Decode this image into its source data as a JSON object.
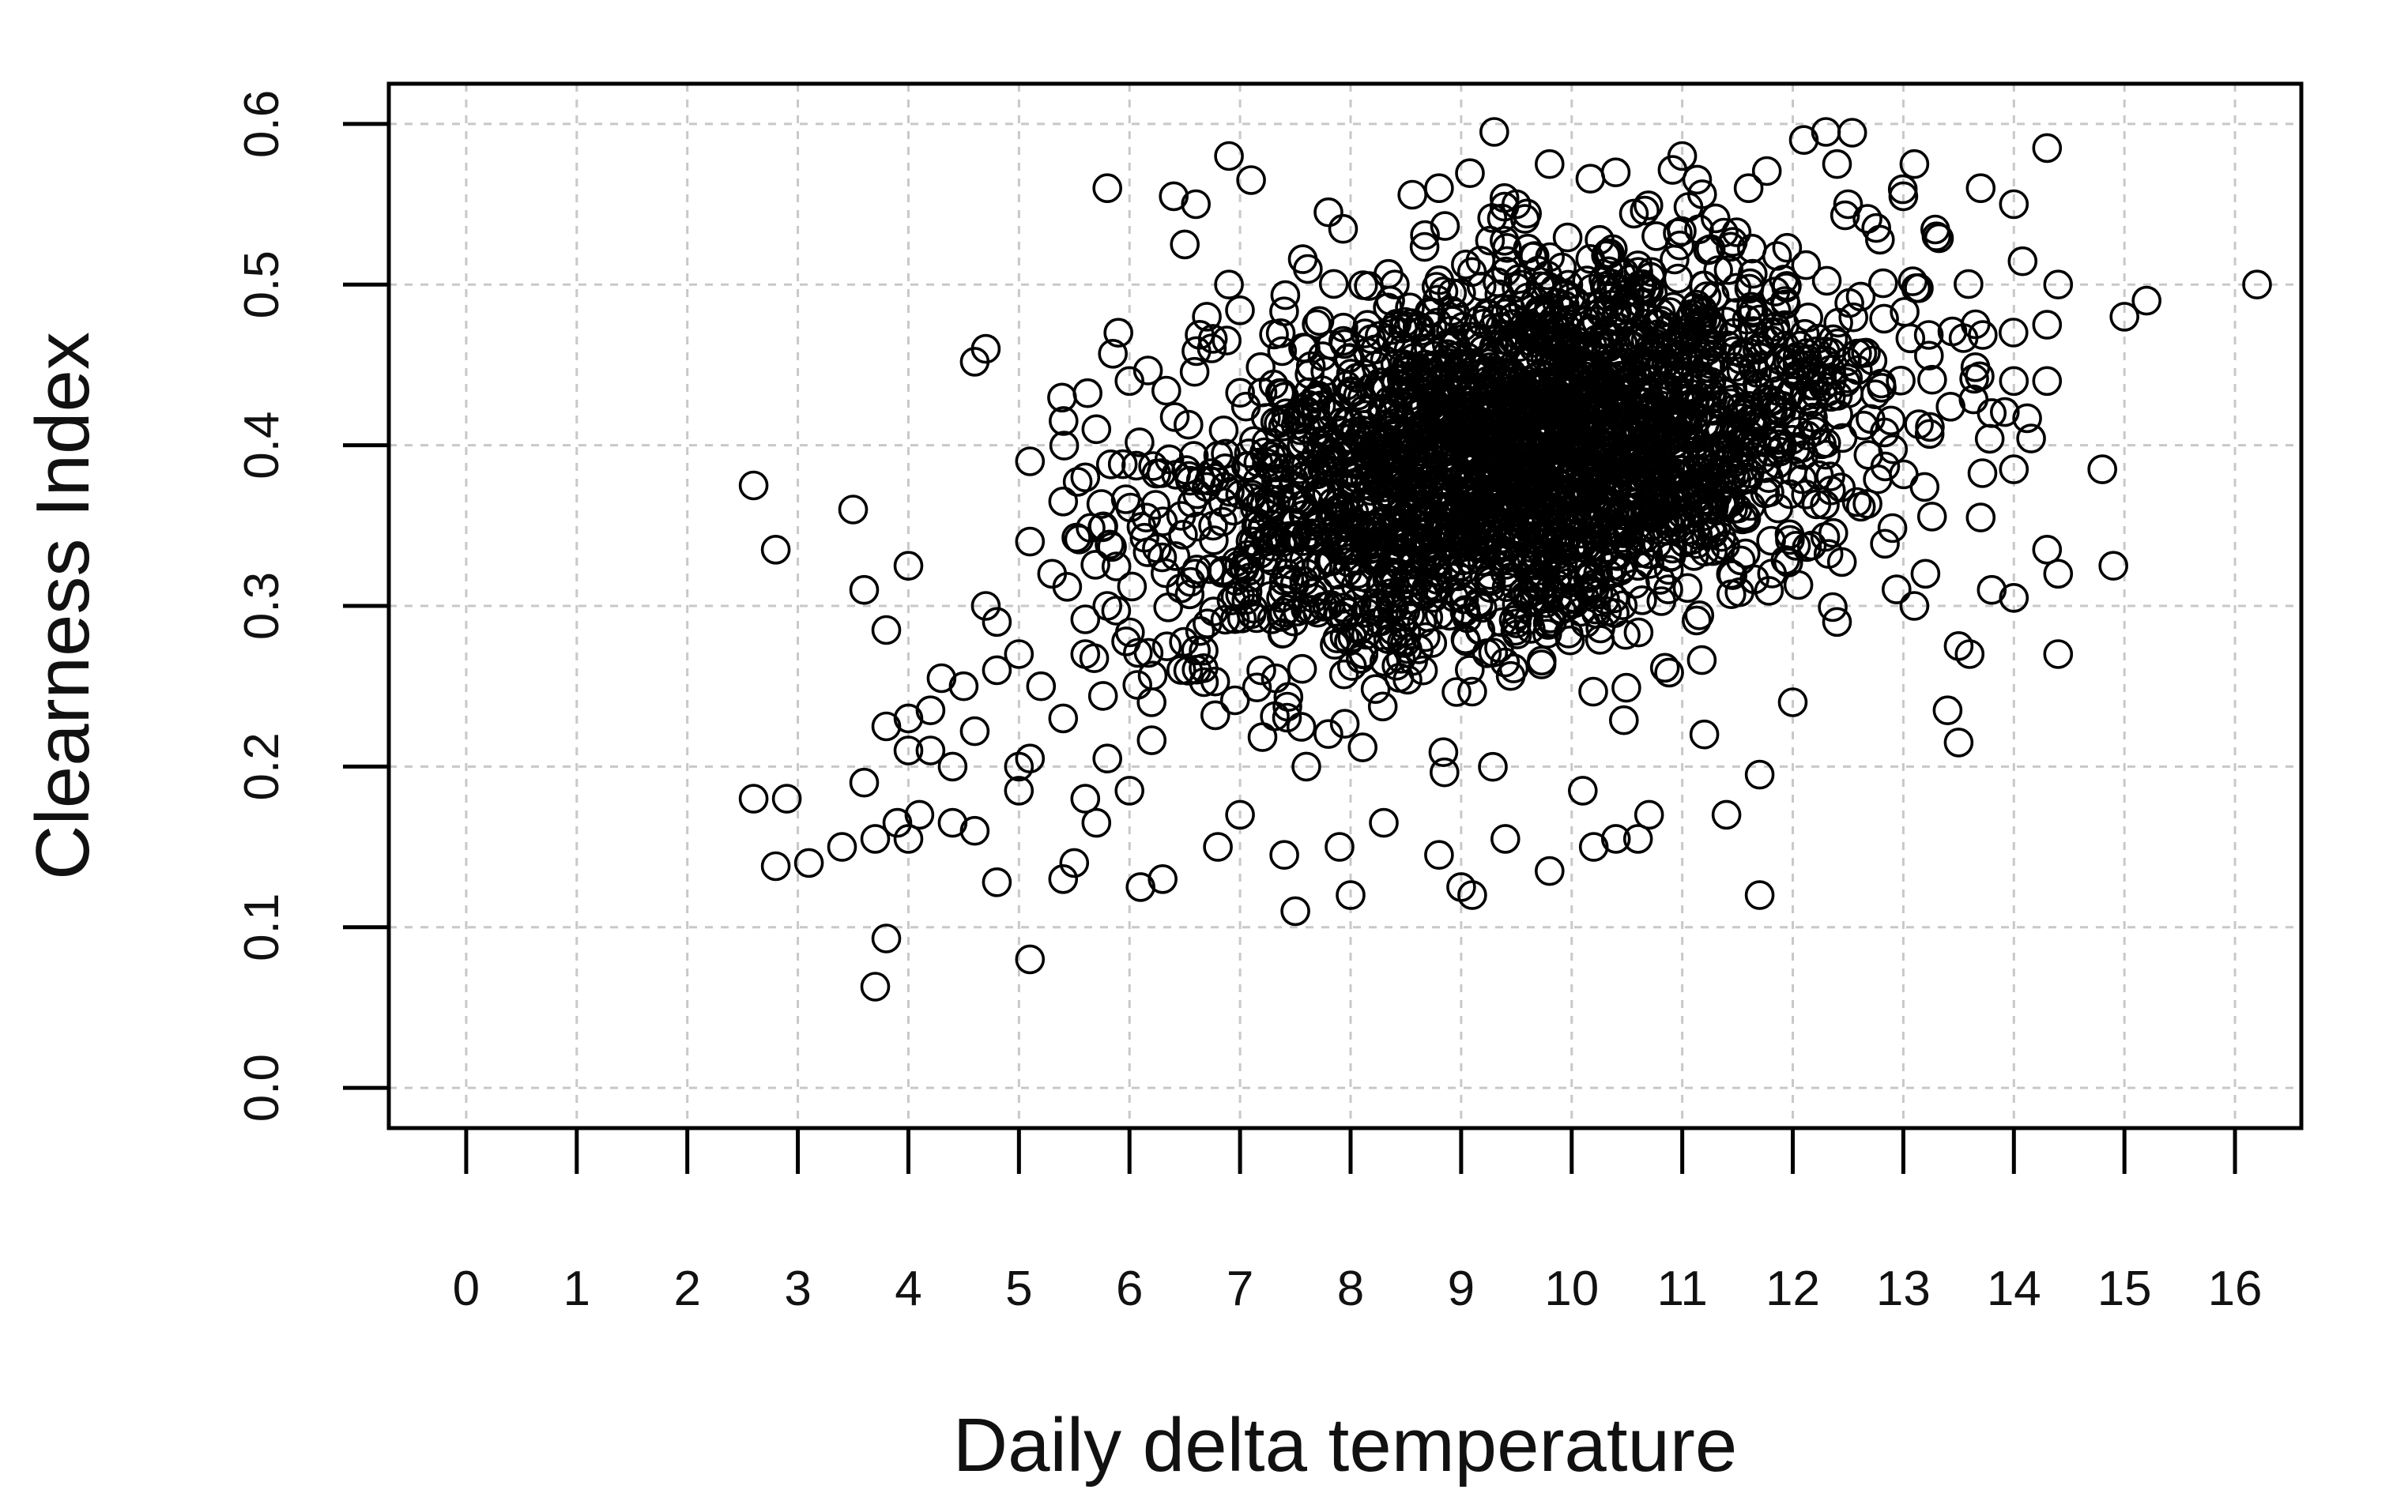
{
  "chart_data": {
    "type": "scatter",
    "title": "",
    "xlabel": "Daily delta temperature",
    "ylabel": "Clearness Index",
    "xlim": [
      -0.7,
      16.6
    ],
    "ylim": [
      -0.025,
      0.625
    ],
    "xticks": [
      0,
      1,
      2,
      3,
      4,
      5,
      6,
      7,
      8,
      9,
      10,
      11,
      12,
      13,
      14,
      15,
      16
    ],
    "xtick_labels": [
      "0",
      "1",
      "2",
      "3",
      "4",
      "5",
      "6",
      "7",
      "8",
      "9",
      "10",
      "11",
      "12",
      "13",
      "14",
      "15",
      "16"
    ],
    "yticks": [
      0.0,
      0.1,
      0.2,
      0.3,
      0.4,
      0.5,
      0.6
    ],
    "ytick_labels": [
      "0.0",
      "0.1",
      "0.2",
      "0.3",
      "0.4",
      "0.5",
      "0.6"
    ],
    "grid": true,
    "marker": "open-circle",
    "marker_color": "#000000",
    "grid_color": "#c8c8c8",
    "axis_color": "#000000",
    "text_color": "#111111",
    "series": [
      {
        "values": [
          [
            2.6,
            0.375
          ],
          [
            2.8,
            0.335
          ],
          [
            2.6,
            0.18
          ],
          [
            2.9,
            0.18
          ],
          [
            2.8,
            0.138
          ],
          [
            3.1,
            0.14
          ],
          [
            3.4,
            0.15
          ],
          [
            3.5,
            0.36
          ],
          [
            3.6,
            0.31
          ],
          [
            3.6,
            0.19
          ],
          [
            3.7,
            0.155
          ],
          [
            3.7,
            0.063
          ],
          [
            3.8,
            0.093
          ],
          [
            3.8,
            0.285
          ],
          [
            3.8,
            0.225
          ],
          [
            3.9,
            0.165
          ],
          [
            4.0,
            0.325
          ],
          [
            4.0,
            0.23
          ],
          [
            4.0,
            0.21
          ],
          [
            4.0,
            0.155
          ],
          [
            4.1,
            0.17
          ],
          [
            4.2,
            0.235
          ],
          [
            4.2,
            0.21
          ],
          [
            4.3,
            0.255
          ],
          [
            4.4,
            0.2
          ],
          [
            4.4,
            0.165
          ],
          [
            4.5,
            0.25
          ],
          [
            4.6,
            0.16
          ],
          [
            4.6,
            0.222
          ],
          [
            4.6,
            0.452
          ],
          [
            4.7,
            0.46
          ],
          [
            4.7,
            0.3
          ],
          [
            4.8,
            0.128
          ],
          [
            4.8,
            0.26
          ],
          [
            4.8,
            0.29
          ],
          [
            5.0,
            0.185
          ],
          [
            5.0,
            0.2
          ],
          [
            5.0,
            0.27
          ],
          [
            5.1,
            0.08
          ],
          [
            5.1,
            0.39
          ],
          [
            5.1,
            0.34
          ],
          [
            5.1,
            0.205
          ],
          [
            5.2,
            0.25
          ],
          [
            5.3,
            0.32
          ],
          [
            5.4,
            0.13
          ],
          [
            5.4,
            0.23
          ],
          [
            5.4,
            0.365
          ],
          [
            5.5,
            0.14
          ],
          [
            5.6,
            0.38
          ],
          [
            5.6,
            0.27
          ],
          [
            5.6,
            0.18
          ],
          [
            5.7,
            0.41
          ],
          [
            5.7,
            0.165
          ],
          [
            5.8,
            0.56
          ],
          [
            5.8,
            0.3
          ],
          [
            5.8,
            0.205
          ],
          [
            5.9,
            0.47
          ],
          [
            6.0,
            0.44
          ],
          [
            6.0,
            0.185
          ],
          [
            6.1,
            0.125
          ],
          [
            6.2,
            0.24
          ],
          [
            6.3,
            0.13
          ],
          [
            6.4,
            0.555
          ],
          [
            6.5,
            0.525
          ],
          [
            6.6,
            0.55
          ],
          [
            6.7,
            0.48
          ],
          [
            6.8,
            0.15
          ],
          [
            6.9,
            0.58
          ],
          [
            6.9,
            0.5
          ],
          [
            7.0,
            0.17
          ],
          [
            7.1,
            0.565
          ],
          [
            7.4,
            0.145
          ],
          [
            7.5,
            0.11
          ],
          [
            7.6,
            0.2
          ],
          [
            7.8,
            0.545
          ],
          [
            7.9,
            0.15
          ],
          [
            8.0,
            0.12
          ],
          [
            8.3,
            0.165
          ],
          [
            8.4,
            0.5
          ],
          [
            8.8,
            0.56
          ],
          [
            8.8,
            0.145
          ],
          [
            9.0,
            0.125
          ],
          [
            9.1,
            0.12
          ],
          [
            9.3,
            0.595
          ],
          [
            9.4,
            0.155
          ],
          [
            9.5,
            0.55
          ],
          [
            9.8,
            0.575
          ],
          [
            9.8,
            0.135
          ],
          [
            10.1,
            0.185
          ],
          [
            10.2,
            0.15
          ],
          [
            10.4,
            0.155
          ],
          [
            10.6,
            0.155
          ],
          [
            10.7,
            0.17
          ],
          [
            11.0,
            0.58
          ],
          [
            11.2,
            0.22
          ],
          [
            11.4,
            0.17
          ],
          [
            11.6,
            0.56
          ],
          [
            11.7,
            0.12
          ],
          [
            11.7,
            0.195
          ],
          [
            12.0,
            0.24
          ],
          [
            12.1,
            0.59
          ],
          [
            12.3,
            0.595
          ],
          [
            12.4,
            0.575
          ],
          [
            12.4,
            0.29
          ],
          [
            12.5,
            0.55
          ],
          [
            13.0,
            0.555
          ],
          [
            13.1,
            0.575
          ],
          [
            13.1,
            0.3
          ],
          [
            13.2,
            0.32
          ],
          [
            13.3,
            0.53
          ],
          [
            13.4,
            0.235
          ],
          [
            13.5,
            0.215
          ],
          [
            13.5,
            0.275
          ],
          [
            13.6,
            0.27
          ],
          [
            13.7,
            0.56
          ],
          [
            13.7,
            0.355
          ],
          [
            13.8,
            0.42
          ],
          [
            13.8,
            0.31
          ],
          [
            14.0,
            0.55
          ],
          [
            14.0,
            0.44
          ],
          [
            14.0,
            0.385
          ],
          [
            14.0,
            0.305
          ],
          [
            14.3,
            0.585
          ],
          [
            14.3,
            0.475
          ],
          [
            14.3,
            0.44
          ],
          [
            14.3,
            0.335
          ],
          [
            14.4,
            0.5
          ],
          [
            14.4,
            0.32
          ],
          [
            14.4,
            0.27
          ],
          [
            14.8,
            0.385
          ],
          [
            14.9,
            0.325
          ],
          [
            15.0,
            0.48
          ],
          [
            15.2,
            0.49
          ],
          [
            16.2,
            0.5
          ]
        ]
      }
    ]
  }
}
